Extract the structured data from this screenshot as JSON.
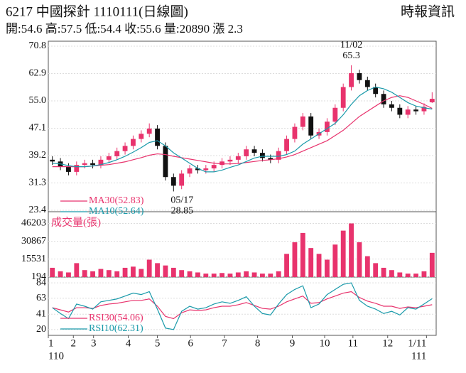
{
  "header": {
    "title": "6217  中國探針 1110111(日線圖)",
    "source": "時報資訊",
    "summary": "開:54.6 高:57.5 低:54.4 收:55.6 量:20890 漲 2.3"
  },
  "chart_data": [
    {
      "type": "candlestick",
      "up_color": "#e8336d",
      "down_color": "#111111",
      "open": [
        38,
        37.5,
        36,
        34.5,
        36.5,
        37,
        36.5,
        38,
        39,
        40.5,
        42,
        44,
        45.5,
        47,
        42,
        33,
        30.5,
        34,
        35.5,
        35,
        35.5,
        36.5,
        37.5,
        38,
        39,
        41,
        40,
        38.5,
        38,
        40.5,
        44,
        47.5,
        50.5,
        45,
        46,
        49,
        53,
        59,
        63,
        61,
        59,
        57,
        54,
        53,
        51,
        52.5,
        52,
        54.6
      ],
      "high": [
        39,
        38.5,
        37,
        37.5,
        38,
        38,
        39,
        40,
        41.5,
        43,
        45,
        46.5,
        48.5,
        48,
        43,
        34,
        35,
        36.5,
        36.5,
        36.5,
        37.5,
        38.5,
        39,
        40,
        42,
        42,
        41,
        39.5,
        41.5,
        45,
        48.5,
        51.5,
        51.5,
        47,
        50,
        54,
        60,
        65.3,
        64,
        62,
        60,
        58,
        55,
        54,
        53.5,
        53.5,
        54.3,
        57.5
      ],
      "low": [
        36.5,
        35,
        33.5,
        33.5,
        35.5,
        35.5,
        35.5,
        37,
        38,
        39.5,
        41,
        43,
        44.5,
        41,
        32,
        28.85,
        29.5,
        33,
        34,
        34,
        34.5,
        35.5,
        36.5,
        37,
        38,
        39,
        37.5,
        37,
        37,
        39.5,
        43,
        46.5,
        44,
        44,
        45,
        48,
        52,
        58,
        60,
        58,
        56,
        53,
        52,
        50,
        50,
        51,
        51,
        54.4
      ],
      "close": [
        37.5,
        36,
        34.5,
        36.5,
        37,
        36.5,
        38,
        39,
        40.5,
        42,
        44,
        45.5,
        47,
        42,
        33,
        30.5,
        34,
        35.5,
        35,
        35.5,
        36.5,
        37.5,
        38,
        39,
        41,
        40,
        38.5,
        38,
        40.5,
        44,
        47.5,
        50.5,
        45,
        46,
        49,
        53,
        59,
        63,
        61,
        59,
        57,
        54,
        53,
        51,
        52.5,
        52,
        53.3,
        55.6
      ],
      "series": [
        {
          "name": "MA30(52.83)",
          "color": "#e8336d",
          "values": [
            36,
            36,
            36,
            36,
            36,
            36.2,
            36.4,
            36.6,
            37,
            37.4,
            38,
            38.6,
            39.3,
            39.7,
            39.5,
            39,
            38.6,
            38.2,
            37.8,
            37.4,
            37,
            36.8,
            36.8,
            36.9,
            37.2,
            37.5,
            37.8,
            38,
            38.3,
            38.8,
            39.5,
            40.5,
            41.5,
            42.5,
            43.5,
            45,
            46.5,
            48.5,
            50.5,
            52,
            53.5,
            55,
            56,
            56.5,
            56,
            55,
            54,
            52.83
          ]
        },
        {
          "name": "MA10(52.64)",
          "color": "#1a9aaa",
          "values": [
            37,
            36.8,
            36.3,
            36,
            36,
            36.2,
            36.6,
            37.2,
            38,
            39,
            40.2,
            41.5,
            43,
            43.5,
            42,
            40,
            38.5,
            37,
            35.5,
            34.5,
            34.5,
            35,
            35.8,
            36.5,
            37.5,
            38.5,
            39,
            39,
            39,
            39.5,
            40.5,
            42.5,
            44,
            45.5,
            47,
            48.5,
            51,
            54,
            56.5,
            58,
            59,
            58.5,
            57.5,
            56,
            54.5,
            53.5,
            53,
            52.64
          ]
        }
      ],
      "annotations": [
        {
          "date": "11/02",
          "value": 65.3
        },
        {
          "date": "05/17",
          "value": 28.85
        }
      ],
      "xlim": [
        -0.5,
        47.5
      ],
      "ylim": [
        23.4,
        70.8
      ],
      "yticks": [
        70.8,
        62.9,
        {
          "value": 55,
          "label": "55.0"
        },
        47.1,
        39.2,
        31.3,
        23.4
      ],
      "grid": true
    },
    {
      "type": "bar",
      "title": "成交量(張)",
      "color": "#e8336d",
      "values": [
        8000,
        5000,
        4000,
        12000,
        6000,
        5000,
        7000,
        6000,
        5000,
        8000,
        9000,
        7000,
        15000,
        12000,
        10000,
        8000,
        6000,
        5000,
        4000,
        3000,
        3000,
        3500,
        3000,
        4000,
        5000,
        4000,
        3000,
        3000,
        5000,
        20000,
        30000,
        38000,
        25000,
        20000,
        15000,
        28000,
        40000,
        46203,
        30000,
        18000,
        12000,
        8000,
        6000,
        4000,
        3000,
        3000,
        5000,
        20890
      ],
      "xlim": [
        -0.5,
        47.5
      ],
      "ylim": [
        0,
        52000
      ],
      "yticks": [
        46203,
        30867,
        15531,
        194
      ],
      "grid": true
    },
    {
      "type": "line",
      "series": [
        {
          "name": "RSI30(54.06)",
          "color": "#e8336d",
          "values": [
            50,
            47,
            44,
            50,
            50,
            49,
            53,
            55,
            56,
            58,
            60,
            60,
            62,
            52,
            38,
            35,
            43,
            47,
            46,
            47,
            50,
            52,
            52,
            54,
            57,
            53,
            49,
            48,
            52,
            58,
            62,
            66,
            56,
            57,
            62,
            66,
            70,
            72,
            64,
            59,
            56,
            52,
            52,
            49,
            51,
            50,
            52,
            54.06
          ]
        },
        {
          "name": "RSI10(62.31)",
          "color": "#1a9aaa",
          "values": [
            50,
            42,
            35,
            55,
            52,
            48,
            58,
            60,
            62,
            66,
            70,
            68,
            72,
            48,
            22,
            20,
            45,
            52,
            48,
            50,
            55,
            58,
            56,
            60,
            65,
            52,
            42,
            40,
            55,
            68,
            75,
            80,
            50,
            55,
            68,
            75,
            82,
            84,
            60,
            52,
            48,
            42,
            45,
            40,
            50,
            48,
            55,
            62.31
          ]
        }
      ],
      "xlim": [
        -0.5,
        47.5
      ],
      "ylim": [
        14,
        90
      ],
      "yticks": [
        84,
        63,
        41,
        20
      ],
      "grid": true,
      "xticks": [
        {
          "value": -0.5,
          "label": "1"
        },
        {
          "value": 2.6,
          "label": "2"
        },
        {
          "value": 5.1,
          "label": "3"
        },
        {
          "value": 9.4,
          "label": "4"
        },
        {
          "value": 13,
          "label": "5"
        },
        {
          "value": 17.1,
          "label": "6"
        },
        {
          "value": 21.3,
          "label": "7"
        },
        {
          "value": 25.4,
          "label": "8"
        },
        {
          "value": 29.7,
          "label": "9"
        },
        {
          "value": 33.7,
          "label": "10"
        },
        {
          "value": 37.2,
          "label": "11"
        },
        {
          "value": 41.5,
          "label": "12"
        },
        {
          "value": 46.3,
          "label": "1/11"
        }
      ],
      "year_labels": [
        "110",
        "111"
      ]
    }
  ]
}
